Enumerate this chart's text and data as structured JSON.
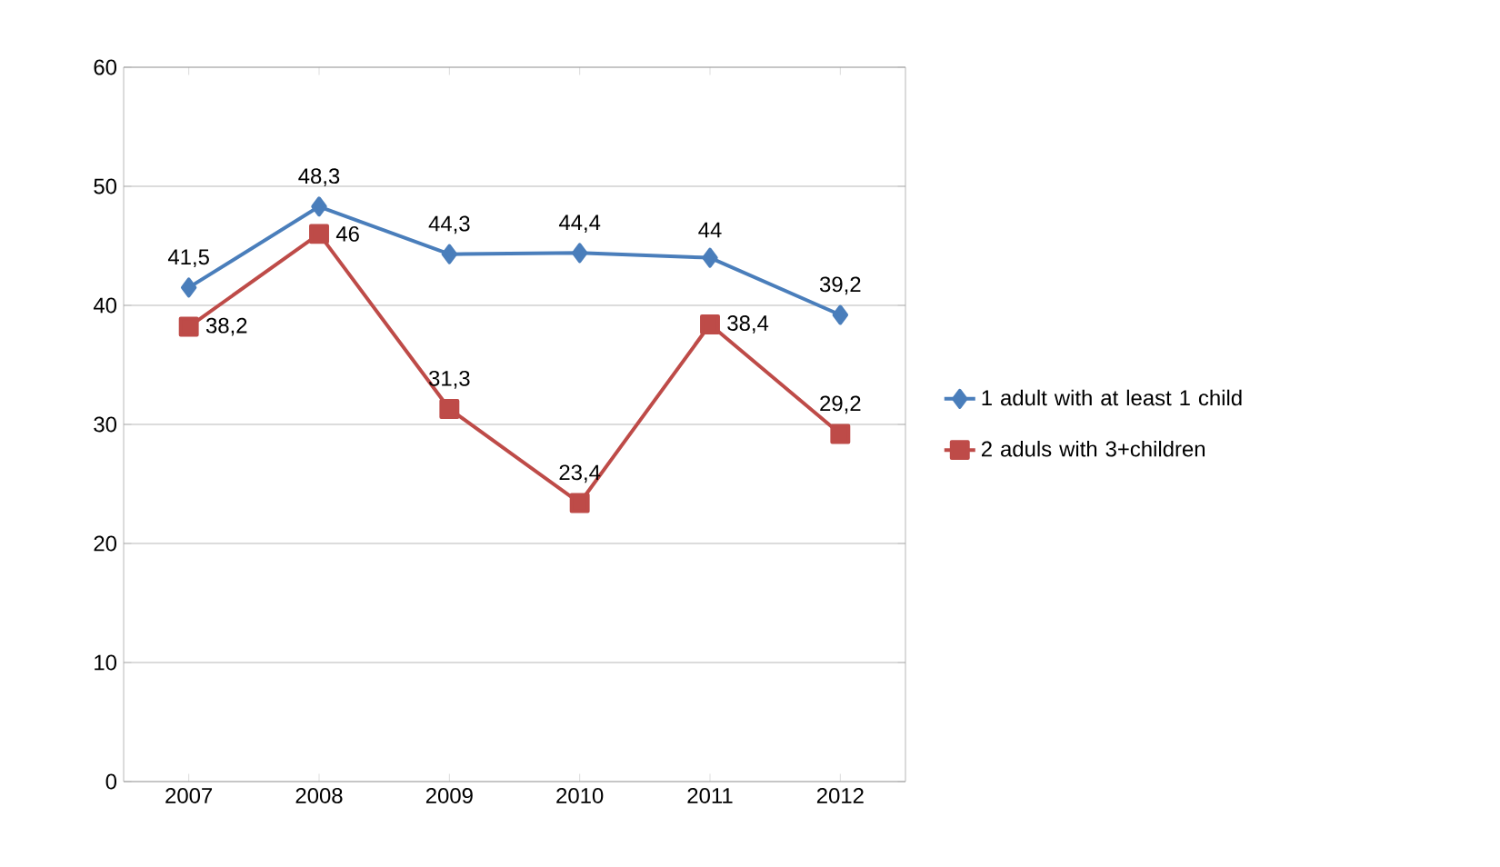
{
  "chart_data": {
    "type": "line",
    "categories": [
      "2007",
      "2008",
      "2009",
      "2010",
      "2011",
      "2012"
    ],
    "series": [
      {
        "name": "1 adult with at least 1 child",
        "color": "#4a7ebb",
        "marker": "diamond",
        "values": [
          41.5,
          48.3,
          44.3,
          44.4,
          44,
          39.2
        ],
        "value_labels": [
          "41,5",
          "48,3",
          "44,3",
          "44,4",
          "44",
          "39,2"
        ]
      },
      {
        "name": "2 aduls with 3+children",
        "color": "#be4b48",
        "marker": "square",
        "values": [
          38.2,
          46,
          31.3,
          23.4,
          38.4,
          29.2
        ],
        "value_labels": [
          "38,2",
          "46",
          "31,3",
          "23,4",
          "38,4",
          "29,2"
        ]
      }
    ],
    "ylim": [
      0,
      60
    ],
    "yticks": [
      0,
      10,
      20,
      30,
      40,
      50,
      60
    ],
    "grid": "y",
    "legend": "right",
    "line_style": "solid"
  }
}
